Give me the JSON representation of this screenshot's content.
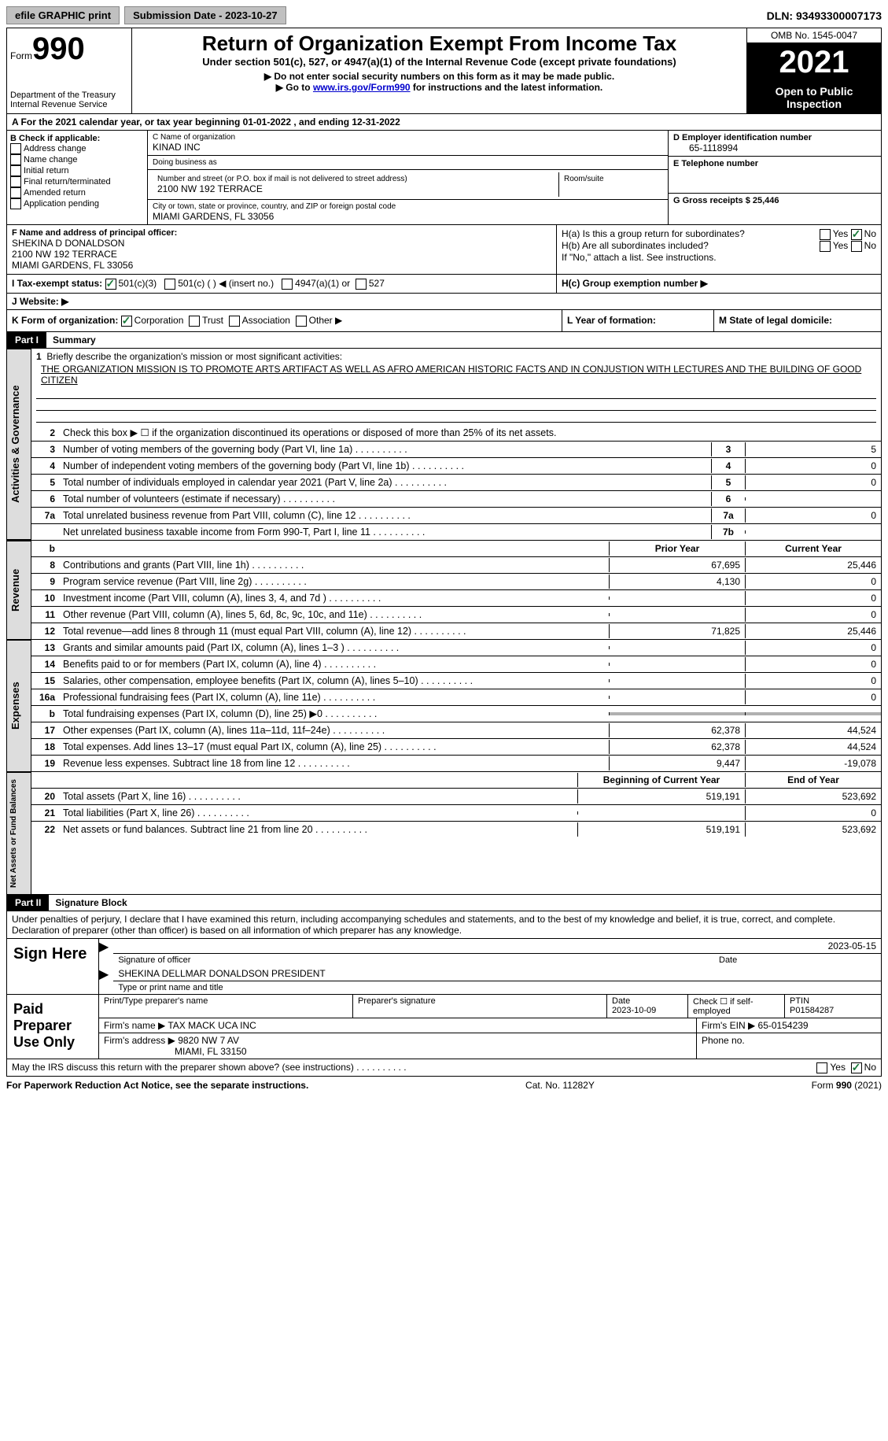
{
  "topbar": {
    "efile": "efile GRAPHIC print",
    "submission_label": "Submission Date - 2023-10-27",
    "dln_label": "DLN: 93493300007173"
  },
  "header": {
    "form_word": "Form",
    "form_num": "990",
    "dept": "Department of the Treasury\nInternal Revenue Service",
    "title": "Return of Organization Exempt From Income Tax",
    "subtitle": "Under section 501(c), 527, or 4947(a)(1) of the Internal Revenue Code (except private foundations)",
    "note1": "▶ Do not enter social security numbers on this form as it may be made public.",
    "note2_pre": "▶ Go to ",
    "note2_link": "www.irs.gov/Form990",
    "note2_post": " for instructions and the latest information.",
    "omb": "OMB No. 1545-0047",
    "year": "2021",
    "open": "Open to Public Inspection"
  },
  "periodA": "A For the 2021 calendar year, or tax year beginning 01-01-2022   , and ending 12-31-2022",
  "boxB": {
    "label": "B Check if applicable:",
    "opts": [
      "Address change",
      "Name change",
      "Initial return",
      "Final return/terminated",
      "Amended return",
      "Application pending"
    ]
  },
  "boxC": {
    "name_label": "C Name of organization",
    "name": "KINAD INC",
    "dba_label": "Doing business as",
    "addr_label": "Number and street (or P.O. box if mail is not delivered to street address)",
    "room_label": "Room/suite",
    "addr": "2100 NW 192 TERRACE",
    "city_label": "City or town, state or province, country, and ZIP or foreign postal code",
    "city": "MIAMI GARDENS, FL  33056"
  },
  "boxD": {
    "label": "D Employer identification number",
    "val": "65-1118994"
  },
  "boxE": {
    "label": "E Telephone number",
    "val": ""
  },
  "boxG": {
    "label": "G Gross receipts $ 25,446"
  },
  "boxF": {
    "label": "F Name and address of principal officer:",
    "name": "SHEKINA D DONALDSON",
    "addr": "2100 NW 192 TERRACE",
    "city": "MIAMI GARDENS, FL  33056"
  },
  "boxH": {
    "a": "H(a)  Is this a group return for subordinates?",
    "b": "H(b)  Are all subordinates included?",
    "b_note": "If \"No,\" attach a list. See instructions.",
    "c": "H(c)  Group exemption number ▶",
    "yes": "Yes",
    "no": "No"
  },
  "boxI": {
    "label": "I    Tax-exempt status:",
    "opts": [
      "501(c)(3)",
      "501(c) (  ) ◀ (insert no.)",
      "4947(a)(1) or",
      "527"
    ]
  },
  "boxJ": "J   Website: ▶",
  "boxK": {
    "label": "K Form of organization:",
    "opts": [
      "Corporation",
      "Trust",
      "Association",
      "Other ▶"
    ]
  },
  "boxL": "L Year of formation:",
  "boxM": "M State of legal domicile:",
  "part1": {
    "label": "Part I",
    "title": "Summary",
    "tab_ag": "Activities & Governance",
    "tab_rev": "Revenue",
    "tab_exp": "Expenses",
    "tab_net": "Net Assets or Fund Balances",
    "line1": "Briefly describe the organization's mission or most significant activities:",
    "mission": "THE ORGANIZATION MISSION IS TO PROMOTE ARTS ARTIFACT AS WELL AS AFRO AMERICAN HISTORIC FACTS AND IN CONJUSTION WITH LECTURES AND THE BUILDING OF GOOD CITIZEN",
    "line2": "Check this box ▶ ☐ if the organization discontinued its operations or disposed of more than 25% of its net assets.",
    "rows_ag": [
      {
        "n": "3",
        "t": "Number of voting members of the governing body (Part VI, line 1a)",
        "box": "3",
        "v": "5"
      },
      {
        "n": "4",
        "t": "Number of independent voting members of the governing body (Part VI, line 1b)",
        "box": "4",
        "v": "0"
      },
      {
        "n": "5",
        "t": "Total number of individuals employed in calendar year 2021 (Part V, line 2a)",
        "box": "5",
        "v": "0"
      },
      {
        "n": "6",
        "t": "Total number of volunteers (estimate if necessary)",
        "box": "6",
        "v": ""
      },
      {
        "n": "7a",
        "t": "Total unrelated business revenue from Part VIII, column (C), line 12",
        "box": "7a",
        "v": "0"
      },
      {
        "n": "",
        "t": "Net unrelated business taxable income from Form 990-T, Part I, line 11",
        "box": "7b",
        "v": ""
      }
    ],
    "col_prior": "Prior Year",
    "col_current": "Current Year",
    "col_begin": "Beginning of Current Year",
    "col_end": "End of Year",
    "rows_rev": [
      {
        "n": "8",
        "t": "Contributions and grants (Part VIII, line 1h)",
        "p": "67,695",
        "c": "25,446"
      },
      {
        "n": "9",
        "t": "Program service revenue (Part VIII, line 2g)",
        "p": "4,130",
        "c": "0"
      },
      {
        "n": "10",
        "t": "Investment income (Part VIII, column (A), lines 3, 4, and 7d )",
        "p": "",
        "c": "0"
      },
      {
        "n": "11",
        "t": "Other revenue (Part VIII, column (A), lines 5, 6d, 8c, 9c, 10c, and 11e)",
        "p": "",
        "c": "0"
      },
      {
        "n": "12",
        "t": "Total revenue—add lines 8 through 11 (must equal Part VIII, column (A), line 12)",
        "p": "71,825",
        "c": "25,446"
      }
    ],
    "rows_exp": [
      {
        "n": "13",
        "t": "Grants and similar amounts paid (Part IX, column (A), lines 1–3 )",
        "p": "",
        "c": "0"
      },
      {
        "n": "14",
        "t": "Benefits paid to or for members (Part IX, column (A), line 4)",
        "p": "",
        "c": "0"
      },
      {
        "n": "15",
        "t": "Salaries, other compensation, employee benefits (Part IX, column (A), lines 5–10)",
        "p": "",
        "c": "0"
      },
      {
        "n": "16a",
        "t": "Professional fundraising fees (Part IX, column (A), line 11e)",
        "p": "",
        "c": "0"
      },
      {
        "n": "b",
        "t": "Total fundraising expenses (Part IX, column (D), line 25) ▶0",
        "p": "shaded",
        "c": "shaded"
      },
      {
        "n": "17",
        "t": "Other expenses (Part IX, column (A), lines 11a–11d, 11f–24e)",
        "p": "62,378",
        "c": "44,524"
      },
      {
        "n": "18",
        "t": "Total expenses. Add lines 13–17 (must equal Part IX, column (A), line 25)",
        "p": "62,378",
        "c": "44,524"
      },
      {
        "n": "19",
        "t": "Revenue less expenses. Subtract line 18 from line 12",
        "p": "9,447",
        "c": "-19,078"
      }
    ],
    "rows_net": [
      {
        "n": "20",
        "t": "Total assets (Part X, line 16)",
        "p": "519,191",
        "c": "523,692"
      },
      {
        "n": "21",
        "t": "Total liabilities (Part X, line 26)",
        "p": "",
        "c": "0"
      },
      {
        "n": "22",
        "t": "Net assets or fund balances. Subtract line 21 from line 20",
        "p": "519,191",
        "c": "523,692"
      }
    ]
  },
  "part2": {
    "label": "Part II",
    "title": "Signature Block",
    "declaration": "Under penalties of perjury, I declare that I have examined this return, including accompanying schedules and statements, and to the best of my knowledge and belief, it is true, correct, and complete. Declaration of preparer (other than officer) is based on all information of which preparer has any knowledge.",
    "sign_here": "Sign Here",
    "sig_officer": "Signature of officer",
    "sig_date": "2023-05-15",
    "date_label": "Date",
    "officer_name": "SHEKINA DELLMAR DONALDSON  PRESIDENT",
    "type_name": "Type or print name and title",
    "paid": "Paid Preparer Use Only",
    "prep_name_label": "Print/Type preparer's name",
    "prep_sig_label": "Preparer's signature",
    "prep_date_label": "Date",
    "prep_date": "2023-10-09",
    "check_self": "Check ☐ if self-employed",
    "ptin_label": "PTIN",
    "ptin": "P01584287",
    "firm_name_label": "Firm's name    ▶",
    "firm_name": "TAX MACK UCA INC",
    "firm_ein_label": "Firm's EIN ▶",
    "firm_ein": "65-0154239",
    "firm_addr_label": "Firm's address ▶",
    "firm_addr": "9820 NW 7 AV",
    "firm_city": "MIAMI, FL  33150",
    "phone_label": "Phone no."
  },
  "footer": {
    "discuss": "May the IRS discuss this return with the preparer shown above? (see instructions)",
    "paperwork": "For Paperwork Reduction Act Notice, see the separate instructions.",
    "cat": "Cat. No. 11282Y",
    "form": "Form 990 (2021)"
  }
}
